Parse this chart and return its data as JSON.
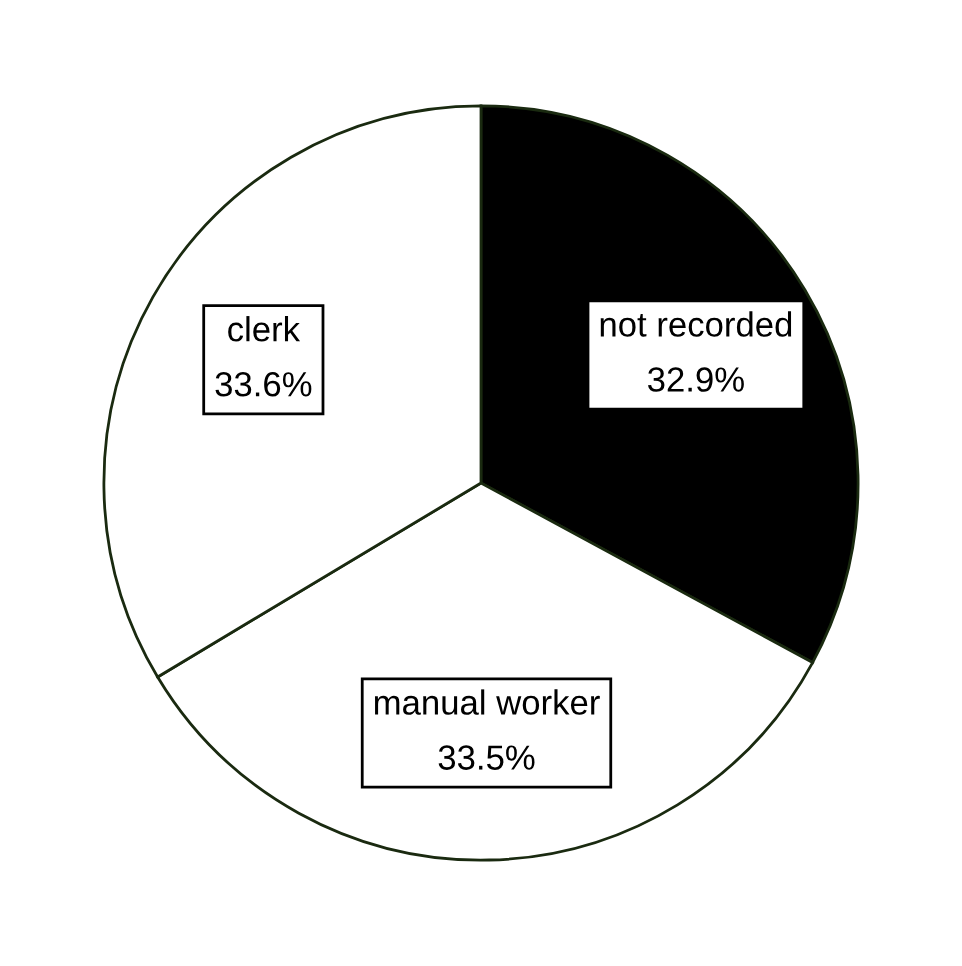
{
  "chart_data": {
    "type": "pie",
    "categories": [
      "not recorded",
      "manual worker",
      "clerk"
    ],
    "values": [
      32.9,
      33.5,
      33.6
    ],
    "value_labels": [
      "32.9%",
      "33.5%",
      "33.6%"
    ],
    "colors": [
      "#000000",
      "#ffffff",
      "#ffffff"
    ],
    "legend": false
  }
}
